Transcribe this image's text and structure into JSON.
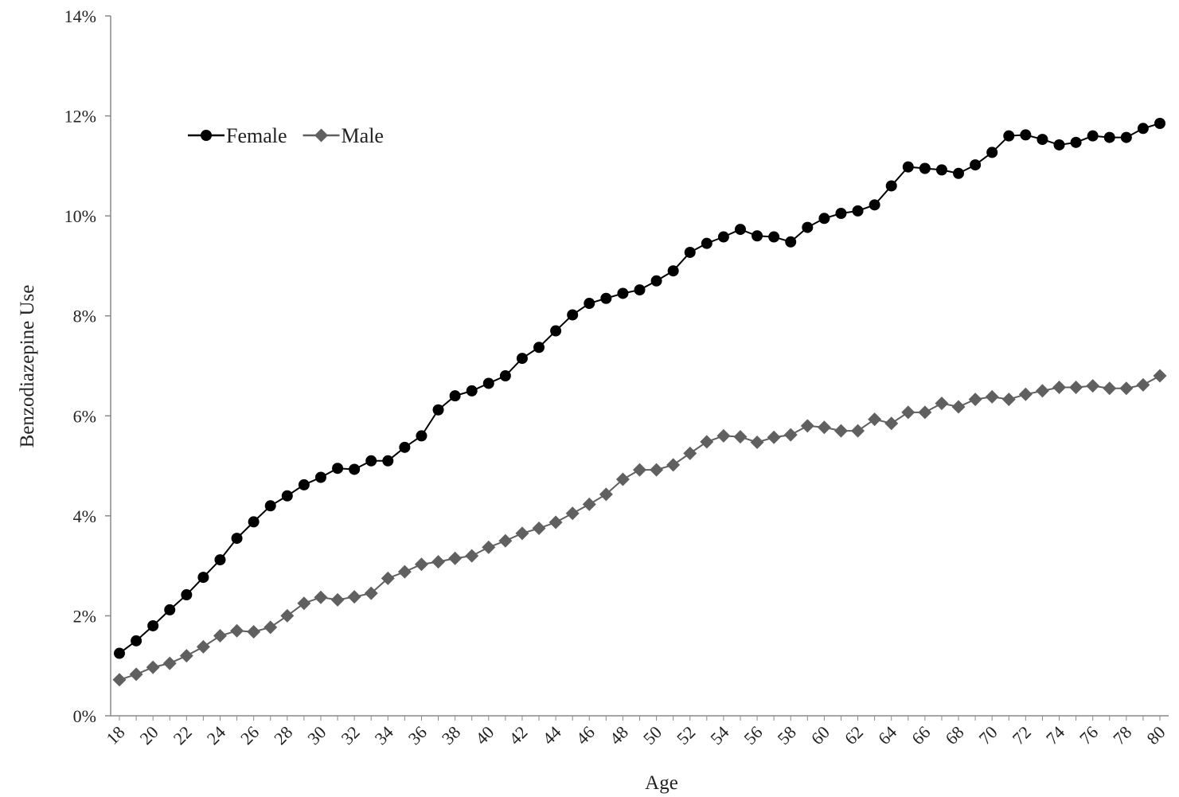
{
  "chart_data": {
    "type": "line",
    "title": "",
    "xlabel": "Age",
    "ylabel": "Benzodiazepine Use",
    "x": [
      18,
      19,
      20,
      21,
      22,
      23,
      24,
      25,
      26,
      27,
      28,
      29,
      30,
      31,
      32,
      33,
      34,
      35,
      36,
      37,
      38,
      39,
      40,
      41,
      42,
      43,
      44,
      45,
      46,
      47,
      48,
      49,
      50,
      51,
      52,
      53,
      54,
      55,
      56,
      57,
      58,
      59,
      60,
      61,
      62,
      63,
      64,
      65,
      66,
      67,
      68,
      69,
      70,
      71,
      72,
      73,
      74,
      75,
      76,
      77,
      78,
      79,
      80
    ],
    "x_tick_labels": [
      "18",
      "20",
      "22",
      "24",
      "26",
      "28",
      "30",
      "32",
      "34",
      "36",
      "38",
      "40",
      "42",
      "44",
      "46",
      "48",
      "50",
      "52",
      "54",
      "56",
      "58",
      "60",
      "62",
      "64",
      "66",
      "68",
      "70",
      "72",
      "74",
      "76",
      "78",
      "80"
    ],
    "y_tick_labels": [
      "0%",
      "2%",
      "4%",
      "6%",
      "8%",
      "10%",
      "12%",
      "14%"
    ],
    "ylim": [
      0,
      14
    ],
    "y_unit": "%",
    "grid": false,
    "legend_position": "top-left",
    "series": [
      {
        "name": "Female",
        "color": "#000000",
        "marker": "circle",
        "values": [
          1.25,
          1.5,
          1.8,
          2.12,
          2.42,
          2.77,
          3.12,
          3.55,
          3.88,
          4.2,
          4.4,
          4.62,
          4.77,
          4.95,
          4.93,
          5.1,
          5.1,
          5.37,
          5.6,
          6.12,
          6.4,
          6.5,
          6.65,
          6.8,
          7.15,
          7.37,
          7.7,
          8.02,
          8.25,
          8.35,
          8.45,
          8.52,
          8.7,
          8.9,
          9.27,
          9.45,
          9.58,
          9.73,
          9.6,
          9.58,
          9.48,
          9.77,
          9.95,
          10.05,
          10.1,
          10.22,
          10.6,
          10.98,
          10.95,
          10.92,
          10.85,
          11.02,
          11.27,
          11.6,
          11.62,
          11.53,
          11.42,
          11.47,
          11.6,
          11.57,
          11.57,
          11.75,
          11.85
        ]
      },
      {
        "name": "Male",
        "color": "#606060",
        "marker": "diamond",
        "values": [
          0.72,
          0.83,
          0.97,
          1.05,
          1.2,
          1.38,
          1.6,
          1.7,
          1.68,
          1.77,
          2.0,
          2.25,
          2.37,
          2.32,
          2.38,
          2.45,
          2.75,
          2.88,
          3.03,
          3.08,
          3.15,
          3.2,
          3.37,
          3.5,
          3.65,
          3.75,
          3.87,
          4.05,
          4.23,
          4.43,
          4.73,
          4.92,
          4.92,
          5.02,
          5.25,
          5.48,
          5.6,
          5.58,
          5.47,
          5.57,
          5.62,
          5.8,
          5.77,
          5.7,
          5.7,
          5.93,
          5.85,
          6.07,
          6.07,
          6.25,
          6.18,
          6.33,
          6.38,
          6.33,
          6.43,
          6.5,
          6.57,
          6.57,
          6.6,
          6.55,
          6.55,
          6.62,
          6.8
        ]
      }
    ]
  }
}
